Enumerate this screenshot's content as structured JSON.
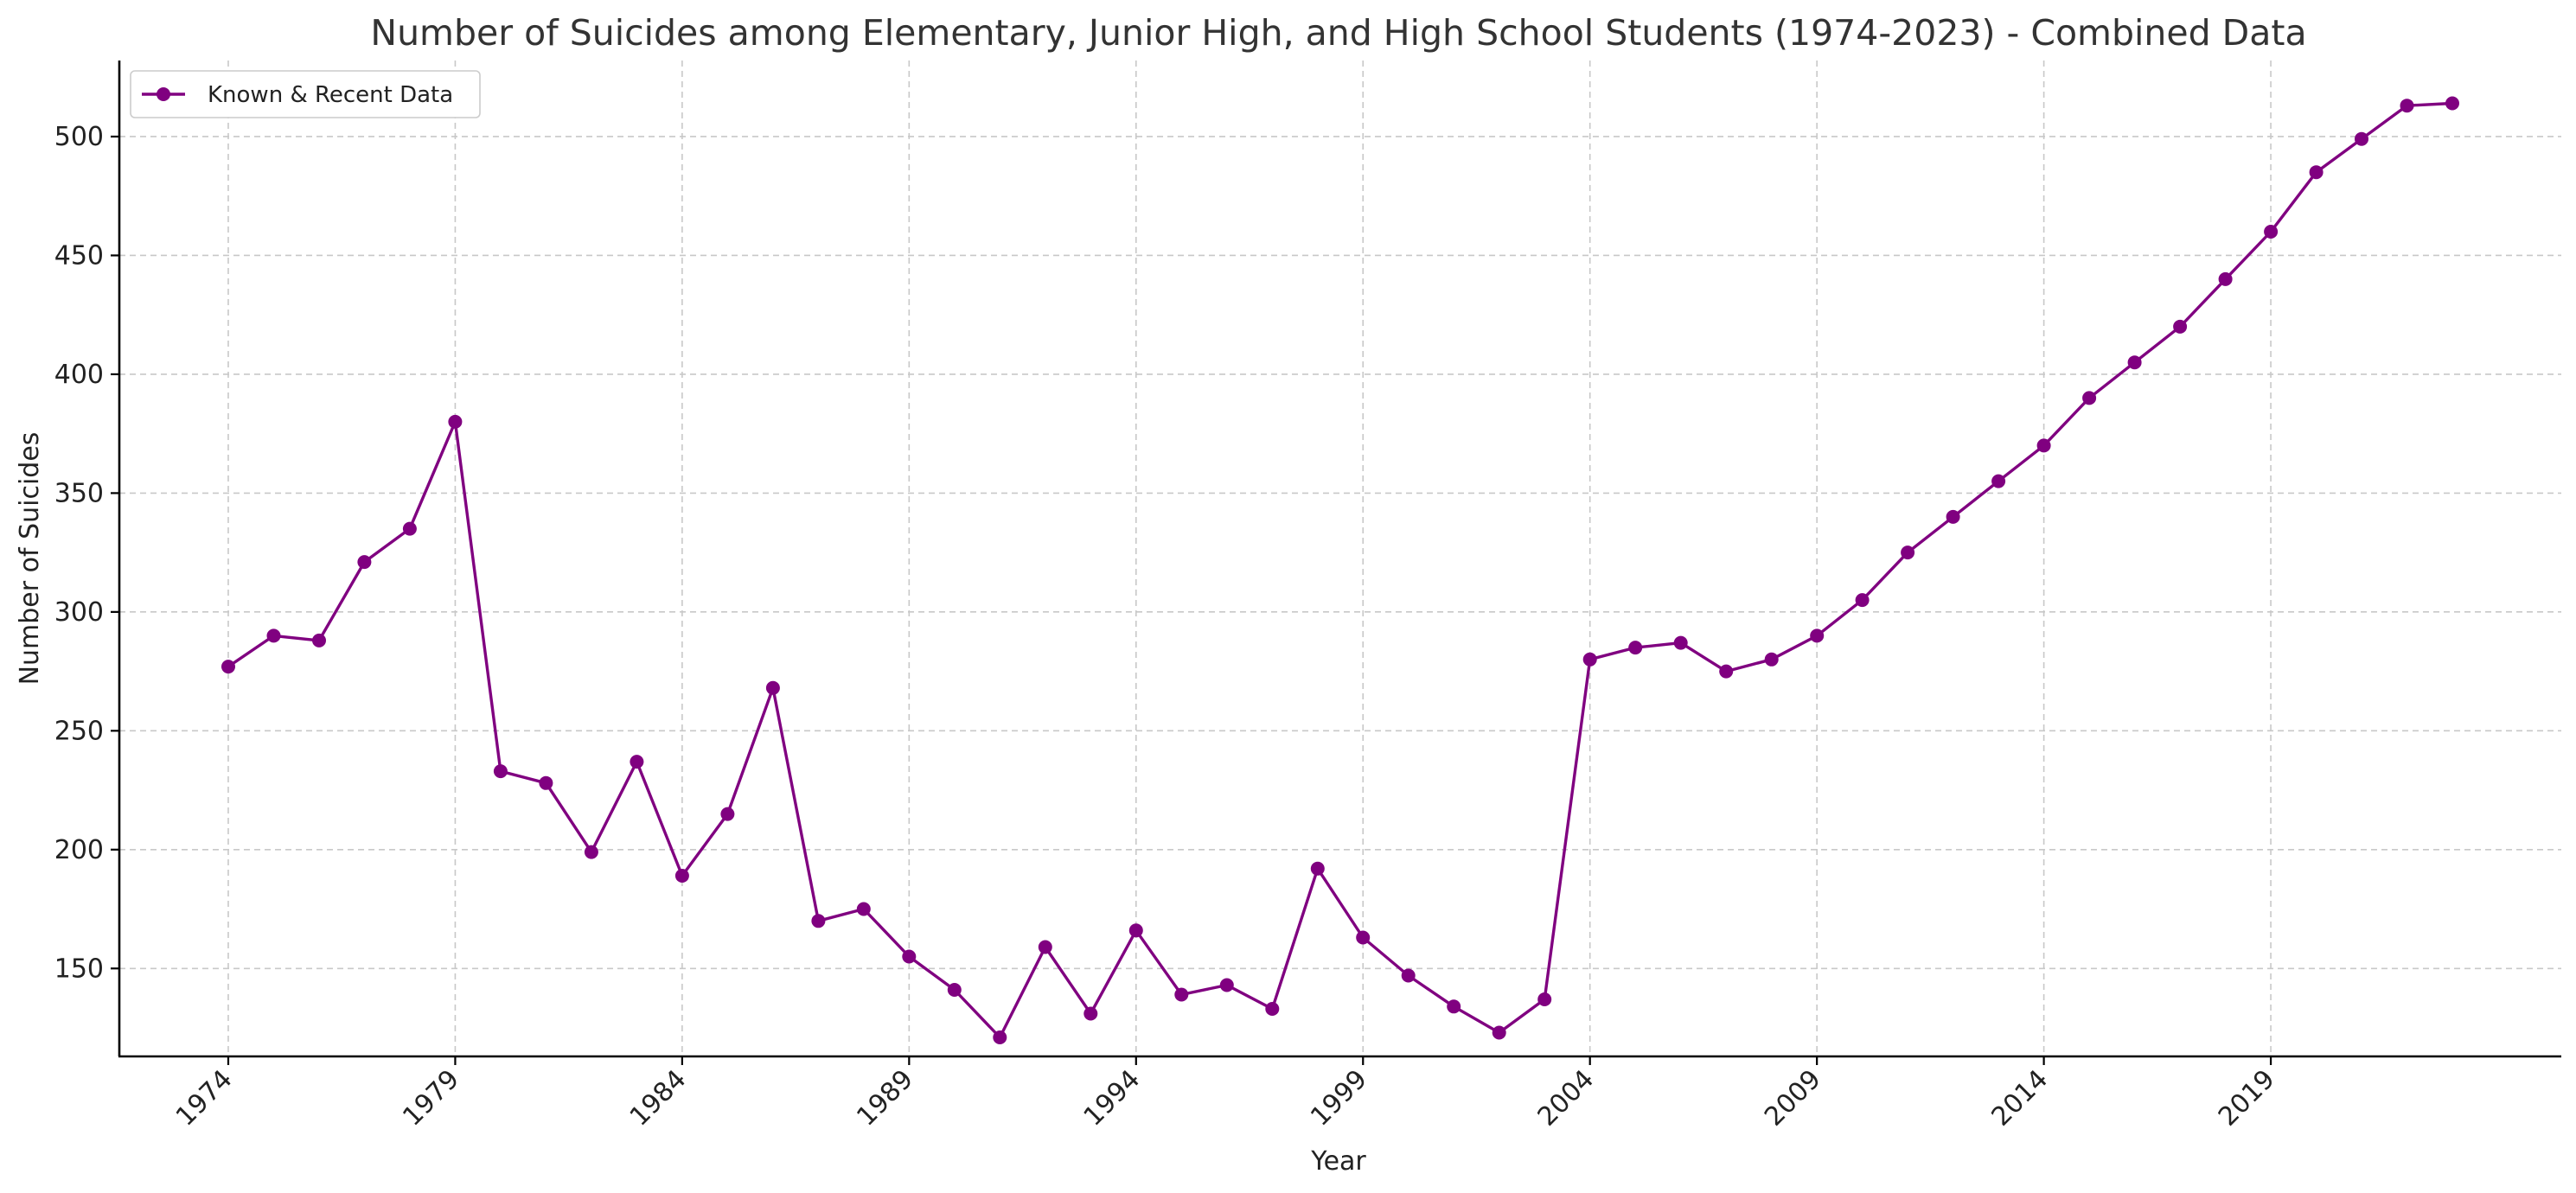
{
  "chart_data": {
    "type": "line",
    "title": "Number of Suicides among Elementary, Junior High, and High School Students (1974-2023) - Combined Data",
    "xlabel": "Year",
    "ylabel": "Number of Suicides",
    "xlim": [
      1971.6,
      2025.4
    ],
    "ylim": [
      113,
      532
    ],
    "xticks": [
      1974,
      1979,
      1984,
      1989,
      1994,
      1999,
      2004,
      2009,
      2014,
      2019
    ],
    "yticks": [
      150,
      200,
      250,
      300,
      350,
      400,
      450,
      500
    ],
    "grid": true,
    "legend_position": "top-left",
    "color": "#800080",
    "series": [
      {
        "name": "Known & Recent Data",
        "x": [
          1974,
          1975,
          1976,
          1977,
          1978,
          1979,
          1980,
          1981,
          1982,
          1983,
          1984,
          1985,
          1986,
          1987,
          1988,
          1989,
          1990,
          1991,
          1992,
          1993,
          1994,
          1995,
          1996,
          1997,
          1998,
          1999,
          2000,
          2001,
          2002,
          2003,
          2004,
          2005,
          2006,
          2007,
          2008,
          2009,
          2010,
          2011,
          2012,
          2013,
          2014,
          2015,
          2016,
          2017,
          2018,
          2019,
          2020,
          2021,
          2022,
          2023
        ],
        "values": [
          277,
          290,
          288,
          321,
          335,
          380,
          233,
          228,
          199,
          237,
          189,
          215,
          268,
          170,
          175,
          155,
          141,
          121,
          159,
          131,
          166,
          139,
          143,
          133,
          192,
          163,
          147,
          134,
          123,
          137,
          280,
          285,
          287,
          275,
          280,
          290,
          305,
          325,
          340,
          355,
          370,
          390,
          405,
          420,
          440,
          460,
          485,
          499,
          513,
          514
        ]
      }
    ]
  }
}
